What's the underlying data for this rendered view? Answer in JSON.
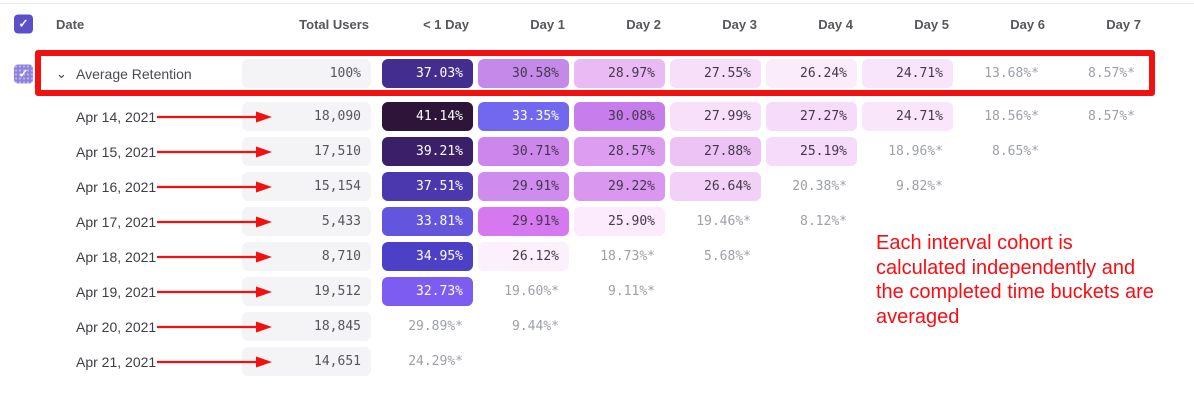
{
  "header": {
    "columns": [
      "Date",
      "Total Users",
      "< 1 Day",
      "Day 1",
      "Day 2",
      "Day 3",
      "Day 4",
      "Day 5",
      "Day 6",
      "Day 7"
    ],
    "select_all_checked": true
  },
  "icons": {
    "checkmark": "✓",
    "chevron_down": "⌄"
  },
  "rows": [
    {
      "label": "Average Retention",
      "type": "average",
      "checked": true,
      "total": "100%",
      "cells": [
        {
          "text": "37.03%",
          "bg": "#432d8e",
          "fg": "#ffffff"
        },
        {
          "text": "30.58%",
          "bg": "#c58ae9",
          "fg": "#43384a"
        },
        {
          "text": "28.97%",
          "bg": "#e9baf4",
          "fg": "#43384a"
        },
        {
          "text": "27.55%",
          "bg": "#f7dffa",
          "fg": "#43384a"
        },
        {
          "text": "26.24%",
          "bg": "#fbecfc",
          "fg": "#43384a"
        },
        {
          "text": "24.71%",
          "bg": "#f9e5fb",
          "fg": "#43384a"
        },
        {
          "text": "13.68%*",
          "bg": null,
          "fg": null
        },
        {
          "text": "8.57%*",
          "bg": null,
          "fg": null
        }
      ]
    },
    {
      "label": "Apr 14, 2021",
      "type": "cohort",
      "total": "18,090",
      "cells": [
        {
          "text": "41.14%",
          "bg": "#2e1438",
          "fg": "#ffffff"
        },
        {
          "text": "33.35%",
          "bg": "#7168ef",
          "fg": "#ffffff"
        },
        {
          "text": "30.08%",
          "bg": "#c77deb",
          "fg": "#43384a"
        },
        {
          "text": "27.99%",
          "bg": "#f8e0fb",
          "fg": "#43384a"
        },
        {
          "text": "27.27%",
          "bg": "#f6dbfa",
          "fg": "#43384a"
        },
        {
          "text": "24.71%",
          "bg": "#fae6fb",
          "fg": "#43384a"
        },
        {
          "text": "18.56%*",
          "bg": null,
          "fg": null
        },
        {
          "text": "8.57%*",
          "bg": null,
          "fg": null
        }
      ]
    },
    {
      "label": "Apr 15, 2021",
      "type": "cohort",
      "total": "17,510",
      "cells": [
        {
          "text": "39.21%",
          "bg": "#3b2069",
          "fg": "#ffffff"
        },
        {
          "text": "30.71%",
          "bg": "#cd87ec",
          "fg": "#43384a"
        },
        {
          "text": "28.57%",
          "bg": "#dd9ef1",
          "fg": "#43384a"
        },
        {
          "text": "27.88%",
          "bg": "#edc3f6",
          "fg": "#43384a"
        },
        {
          "text": "25.19%",
          "bg": "#f7dbfa",
          "fg": "#43384a"
        },
        {
          "text": "18.96%*",
          "bg": null,
          "fg": null
        },
        {
          "text": "8.65%*",
          "bg": null,
          "fg": null
        },
        null
      ]
    },
    {
      "label": "Apr 16, 2021",
      "type": "cohort",
      "total": "15,154",
      "cells": [
        {
          "text": "37.51%",
          "bg": "#4b37ae",
          "fg": "#ffffff"
        },
        {
          "text": "29.91%",
          "bg": "#cf8bed",
          "fg": "#43384a"
        },
        {
          "text": "29.22%",
          "bg": "#da97f0",
          "fg": "#43384a"
        },
        {
          "text": "26.64%",
          "bg": "#f2d0f8",
          "fg": "#43384a"
        },
        {
          "text": "20.38%*",
          "bg": null,
          "fg": null
        },
        {
          "text": "9.82%*",
          "bg": null,
          "fg": null
        },
        null,
        null
      ]
    },
    {
      "label": "Apr 17, 2021",
      "type": "cohort",
      "total": "5,433",
      "cells": [
        {
          "text": "33.81%",
          "bg": "#6355de",
          "fg": "#ffffff"
        },
        {
          "text": "29.91%",
          "bg": "#d678ef",
          "fg": "#43384a"
        },
        {
          "text": "25.90%",
          "bg": "#fceafd",
          "fg": "#43384a"
        },
        {
          "text": "19.46%*",
          "bg": null,
          "fg": null
        },
        {
          "text": "8.12%*",
          "bg": null,
          "fg": null
        },
        null,
        null,
        null
      ]
    },
    {
      "label": "Apr 18, 2021",
      "type": "cohort",
      "total": "8,710",
      "cells": [
        {
          "text": "34.95%",
          "bg": "#4c40c6",
          "fg": "#ffffff"
        },
        {
          "text": "26.12%",
          "bg": "#fdf0fd",
          "fg": "#43384a"
        },
        {
          "text": "18.73%*",
          "bg": null,
          "fg": null
        },
        {
          "text": "5.68%*",
          "bg": null,
          "fg": null
        },
        null,
        null,
        null,
        null
      ]
    },
    {
      "label": "Apr 19, 2021",
      "type": "cohort",
      "total": "19,512",
      "cells": [
        {
          "text": "32.73%",
          "bg": "#7c5cf1",
          "fg": "#ffffff"
        },
        {
          "text": "19.60%*",
          "bg": null,
          "fg": null
        },
        {
          "text": "9.11%*",
          "bg": null,
          "fg": null
        },
        null,
        null,
        null,
        null,
        null
      ]
    },
    {
      "label": "Apr 20, 2021",
      "type": "cohort",
      "total": "18,845",
      "cells": [
        {
          "text": "29.89%*",
          "bg": null,
          "fg": null
        },
        {
          "text": "9.44%*",
          "bg": null,
          "fg": null
        },
        null,
        null,
        null,
        null,
        null,
        null
      ]
    },
    {
      "label": "Apr 21, 2021",
      "type": "cohort",
      "total": "14,651",
      "cells": [
        {
          "text": "24.29%*",
          "bg": null,
          "fg": null
        },
        null,
        null,
        null,
        null,
        null,
        null,
        null
      ]
    }
  ],
  "annotations": {
    "note_lines": [
      "Each interval cohort is",
      "calculated independently and",
      "the completed time buckets are",
      "averaged"
    ]
  },
  "colors": {
    "accent_purple": "#5a50c8",
    "avg_checkbox_purple": "#8b80dd",
    "annotation_red": "#f21010",
    "note_red": "#fb0c12",
    "total_pill_bg": "#f4f4f6",
    "starred_text": "#9ea0a8"
  }
}
